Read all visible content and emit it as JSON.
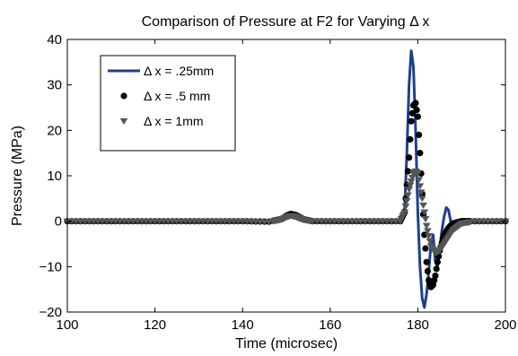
{
  "chart_data": {
    "type": "line",
    "title": "Comparison of Pressure at F2 for Varying Δ x",
    "xlabel": "Time (microsec)",
    "ylabel": "Pressure (MPa)",
    "xlim": [
      100,
      200
    ],
    "ylim": [
      -20,
      40
    ],
    "xticks": [
      100,
      120,
      140,
      160,
      180,
      200
    ],
    "yticks": [
      -20,
      -10,
      0,
      10,
      20,
      30,
      40
    ],
    "xtick_labels": [
      "100",
      "120",
      "140",
      "160",
      "180",
      "200"
    ],
    "ytick_labels": [
      "−20",
      "−10",
      "0",
      "10",
      "20",
      "30",
      "40"
    ],
    "grid": false,
    "legend_position": "top-left",
    "series": [
      {
        "name": "Δ x = .25mm",
        "style": "line",
        "color": "#1f3f8f",
        "x": [
          100,
          140,
          148,
          150,
          151,
          152,
          153,
          154,
          156,
          160,
          176,
          177,
          177.5,
          178,
          178.5,
          179,
          179.5,
          180,
          180.5,
          181,
          181.5,
          182,
          182.5,
          183,
          183.5,
          184,
          184.5,
          185,
          185.5,
          186,
          186.5,
          187,
          187.5,
          188,
          188.5,
          189,
          190,
          192,
          195,
          200
        ],
        "y": [
          0,
          0,
          0.1,
          0.6,
          1.2,
          1.6,
          1.4,
          0.7,
          0.1,
          0,
          0,
          3,
          15,
          30,
          37.5,
          34,
          20,
          2,
          -10,
          -17,
          -19,
          -16,
          -11,
          -5,
          -3,
          -9,
          -10,
          -6,
          -2,
          1,
          3,
          2.5,
          0,
          -1,
          -0.5,
          0,
          0,
          0,
          0,
          0
        ]
      },
      {
        "name": "Δ x = .5 mm",
        "style": "markers",
        "marker": "circle",
        "color": "#000000",
        "x": [
          100,
          120,
          140,
          146,
          149,
          150,
          151,
          152,
          153,
          154,
          156,
          160,
          176,
          177,
          178,
          178.5,
          179,
          179.5,
          180,
          180.5,
          181,
          181.5,
          182,
          182.5,
          183,
          183.5,
          184,
          184.5,
          185,
          186,
          187,
          188,
          190,
          193,
          197,
          200
        ],
        "y": [
          0,
          0,
          0,
          -0.1,
          0.5,
          1.2,
          1.6,
          1.4,
          0.9,
          0.4,
          0,
          0,
          0,
          2,
          14,
          22,
          25.5,
          26,
          23,
          15,
          6,
          -3,
          -9,
          -13,
          -14.5,
          -14,
          -12,
          -9,
          -6.5,
          -3,
          -1.5,
          -0.5,
          0,
          0,
          0,
          0
        ]
      },
      {
        "name": "Δ x = 1mm",
        "style": "markers",
        "marker": "triangle-down",
        "color": "#555555",
        "x": [
          100,
          120,
          140,
          146,
          149,
          150,
          151,
          152,
          153,
          154,
          156,
          160,
          176,
          177,
          178,
          179,
          179.5,
          180,
          181,
          182,
          183,
          184,
          185,
          186,
          187,
          188,
          190,
          193,
          197,
          200
        ],
        "y": [
          0,
          0,
          0,
          -0.2,
          0.4,
          0.9,
          1.2,
          1.0,
          0.6,
          0.3,
          0,
          0,
          0,
          2,
          7,
          10.5,
          11,
          10.5,
          5,
          -1,
          -5.5,
          -7,
          -6.5,
          -5,
          -3.5,
          -2,
          -0.5,
          0,
          0,
          0
        ]
      }
    ]
  }
}
